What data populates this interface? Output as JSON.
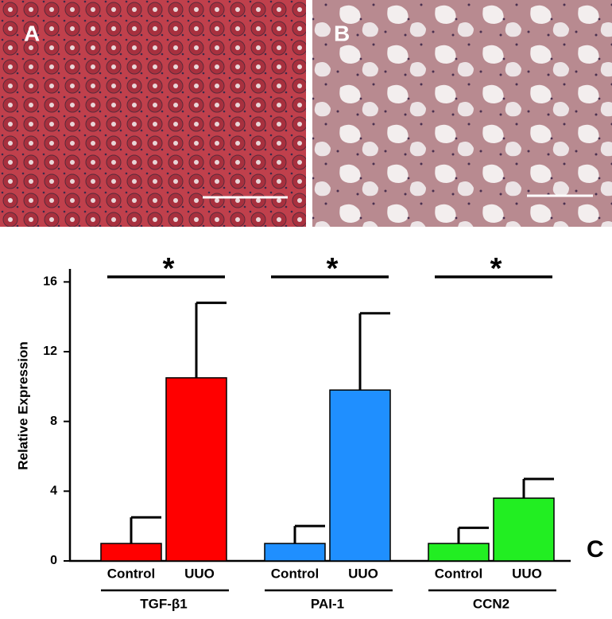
{
  "panels": [
    {
      "label": "A"
    },
    {
      "label": "B"
    }
  ],
  "chart_data": {
    "type": "bar",
    "panel_label": "C",
    "ylabel": "Relative Expression",
    "ylim": [
      0,
      16.7
    ],
    "yticks": [
      0,
      4,
      8,
      12,
      16
    ],
    "categories": [
      "Control",
      "UUO"
    ],
    "series": [
      {
        "name": "TGF-β1",
        "color": "#ff0000",
        "values": [
          1.0,
          10.5
        ],
        "errors": [
          1.5,
          4.3
        ],
        "significance": "*"
      },
      {
        "name": "PAI-1",
        "color": "#1f8fff",
        "values": [
          1.0,
          9.8
        ],
        "errors": [
          1.0,
          4.4
        ],
        "significance": "*"
      },
      {
        "name": "CCN2",
        "color": "#22ee22",
        "values": [
          1.0,
          3.6
        ],
        "errors": [
          0.9,
          1.1
        ],
        "significance": "*"
      }
    ]
  }
}
